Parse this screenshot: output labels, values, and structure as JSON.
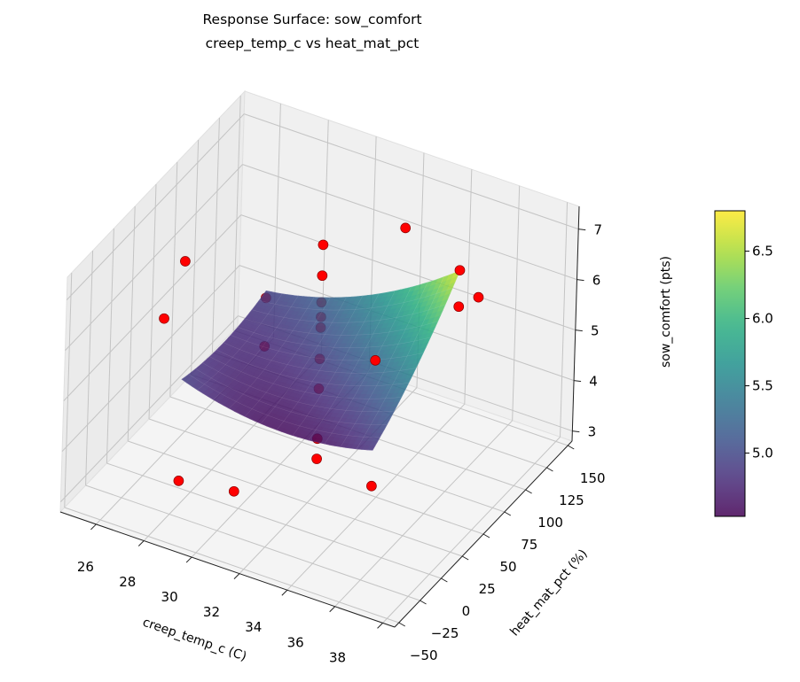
{
  "chart_data": {
    "type": "surface3d",
    "title": [
      "Response Surface: sow_comfort",
      "creep_temp_c vs heat_mat_pct"
    ],
    "xlabel": "creep_temp_c (C)",
    "ylabel": "heat_mat_pct (%)",
    "zlabel": "sow_comfort (pts)",
    "xlim": [
      24.5,
      38.5
    ],
    "ylim": [
      -55,
      155
    ],
    "zlim": [
      2.8,
      7.45
    ],
    "xticks": [
      26,
      28,
      30,
      32,
      34,
      36,
      38
    ],
    "yticks": [
      -50,
      -25,
      0,
      25,
      50,
      75,
      100,
      125,
      150
    ],
    "zticks": [
      3,
      4,
      5,
      6,
      7
    ],
    "xtick_labels": [
      "26",
      "28",
      "30",
      "32",
      "34",
      "36",
      "38"
    ],
    "ytick_labels": [
      "−50",
      "−25",
      "0",
      "25",
      "50",
      "75",
      "100",
      "125",
      "150"
    ],
    "ztick_labels": [
      "3",
      "4",
      "5",
      "6",
      "7"
    ],
    "grid": true,
    "colormap": "viridis",
    "surface": {
      "x_range": [
        27.5,
        35.5
      ],
      "y_range": [
        0,
        100
      ],
      "model_quadratic_normalized": {
        "c": 4.9,
        "s": 0.4,
        "t": 0.45,
        "st": 0.45,
        "s2": 0.3,
        "t2": 0.15
      },
      "alpha": 0.85
    },
    "colorbar": {
      "range": [
        4.53,
        6.8
      ],
      "ticks": [
        5.0,
        5.5,
        6.0,
        6.5
      ],
      "tick_labels": [
        "5.0",
        "5.5",
        "6.0",
        "6.5"
      ]
    },
    "points_color": "#ff0000",
    "points": [
      {
        "x": 31.5,
        "y": 50,
        "z": 7.39
      },
      {
        "x": 31.5,
        "y": 50,
        "z": 6.78
      },
      {
        "x": 31.5,
        "y": 50,
        "z": 6.25
      },
      {
        "x": 31.5,
        "y": 50,
        "z": 5.96
      },
      {
        "x": 31.5,
        "y": 50,
        "z": 5.75
      },
      {
        "x": 31.5,
        "y": 50,
        "z": 5.13
      },
      {
        "x": 31.5,
        "y": 50,
        "z": 4.54
      },
      {
        "x": 31.5,
        "y": 50,
        "z": 3.55
      },
      {
        "x": 31.5,
        "y": 50,
        "z": 3.15
      },
      {
        "x": 27.5,
        "y": 0,
        "z": 7.29
      },
      {
        "x": 27.5,
        "y": 0,
        "z": 2.94
      },
      {
        "x": 25,
        "y": 50,
        "z": 4.87
      },
      {
        "x": 31.5,
        "y": -50,
        "z": 4.26
      },
      {
        "x": 31.5,
        "y": 150,
        "z": 5.97
      },
      {
        "x": 35.5,
        "y": 0,
        "z": 4.14
      },
      {
        "x": 35.5,
        "y": 0,
        "z": 6.63
      },
      {
        "x": 35.5,
        "y": 100,
        "z": 5.94
      },
      {
        "x": 35.5,
        "y": 100,
        "z": 6.66
      },
      {
        "x": 38,
        "y": 50,
        "z": 7.41
      },
      {
        "x": 27.5,
        "y": 100,
        "z": 4.81
      },
      {
        "x": 27.5,
        "y": 100,
        "z": 3.85
      }
    ]
  }
}
